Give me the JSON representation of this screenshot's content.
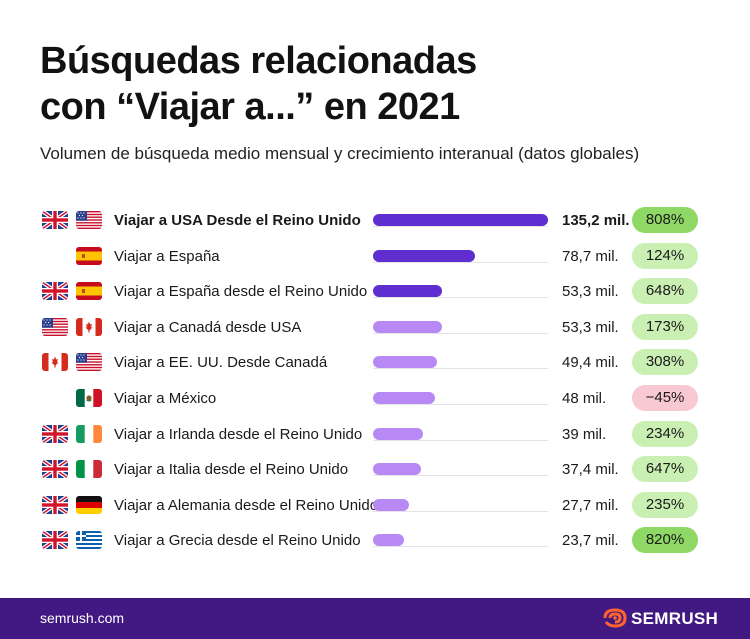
{
  "title_line1": "Búsquedas relacionadas",
  "title_line2": "con “Viajar a...” en 2021",
  "subtitle": "Volumen de búsqueda medio mensual y crecimiento interanual (datos globales)",
  "colors": {
    "bar_dark": "#5f2ed0",
    "bar_light": "#b889f5",
    "badge_green_bright": "#8fd866",
    "badge_green_light": "#c9efb2",
    "badge_red": "#f8c8d3",
    "footer": "#421983",
    "brand_orange": "#ff642d"
  },
  "chart_data": {
    "type": "bar",
    "orientation": "horizontal",
    "title": "Búsquedas relacionadas con “Viajar a...” en 2021",
    "subtitle": "Volumen de búsqueda medio mensual y crecimiento interanual (datos globales)",
    "unit": "mil.",
    "xlim": [
      0,
      135.2
    ],
    "grid": false,
    "rows": [
      {
        "label": "Viajar a USA Desde el Reino Unido",
        "value": 135.2,
        "value_label": "135,2 mil.",
        "growth": 808,
        "growth_label": "808%",
        "flags": [
          "uk",
          "us"
        ],
        "bar_style": "dark",
        "badge_style": "green_bright",
        "bold": true
      },
      {
        "label": "Viajar a España",
        "value": 78.7,
        "value_label": "78,7 mil.",
        "growth": 124,
        "growth_label": "124%",
        "flags": [
          "es"
        ],
        "bar_style": "dark",
        "badge_style": "green_light",
        "bold": false
      },
      {
        "label": "Viajar a España desde el Reino Unido",
        "value": 53.3,
        "value_label": "53,3 mil.",
        "growth": 648,
        "growth_label": "648%",
        "flags": [
          "uk",
          "es"
        ],
        "bar_style": "dark",
        "badge_style": "green_light",
        "bold": false
      },
      {
        "label": "Viajar a Canadá desde USA",
        "value": 53.3,
        "value_label": "53,3 mil.",
        "growth": 173,
        "growth_label": "173%",
        "flags": [
          "us",
          "ca"
        ],
        "bar_style": "light",
        "badge_style": "green_light",
        "bold": false
      },
      {
        "label": "Viajar a EE. UU. Desde Canadá",
        "value": 49.4,
        "value_label": "49,4 mil.",
        "growth": 308,
        "growth_label": "308%",
        "flags": [
          "ca",
          "us"
        ],
        "bar_style": "light",
        "badge_style": "green_light",
        "bold": false
      },
      {
        "label": "Viajar a México",
        "value": 48,
        "value_label": "48 mil.",
        "growth": -45,
        "growth_label": "−45%",
        "flags": [
          "mx"
        ],
        "bar_style": "light",
        "badge_style": "red",
        "bold": false
      },
      {
        "label": "Viajar a Irlanda desde el Reino Unido",
        "value": 39,
        "value_label": "39 mil.",
        "growth": 234,
        "growth_label": "234%",
        "flags": [
          "uk",
          "ie"
        ],
        "bar_style": "light",
        "badge_style": "green_light",
        "bold": false
      },
      {
        "label": "Viajar a Italia desde el Reino Unido",
        "value": 37.4,
        "value_label": "37,4 mil.",
        "growth": 647,
        "growth_label": "647%",
        "flags": [
          "uk",
          "it"
        ],
        "bar_style": "light",
        "badge_style": "green_light",
        "bold": false
      },
      {
        "label": "Viajar a Alemania desde el Reino Unido",
        "value": 27.7,
        "value_label": "27,7 mil.",
        "growth": 235,
        "growth_label": "235%",
        "flags": [
          "uk",
          "de"
        ],
        "bar_style": "light",
        "badge_style": "green_light",
        "bold": false
      },
      {
        "label": "Viajar a Grecia desde el Reino Unido",
        "value": 23.7,
        "value_label": "23,7 mil.",
        "growth": 820,
        "growth_label": "820%",
        "flags": [
          "uk",
          "gr"
        ],
        "bar_style": "light",
        "badge_style": "green_bright",
        "bold": false
      }
    ]
  },
  "footer": {
    "url": "semrush.com",
    "brand": "SEMRUSH",
    "logo_icon": "semrush-flame-icon"
  }
}
